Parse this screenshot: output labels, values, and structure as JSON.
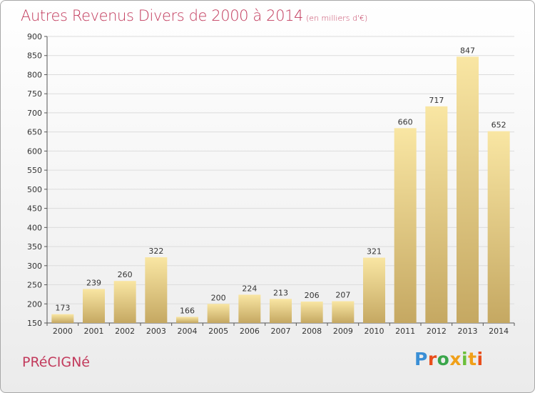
{
  "header": {
    "title": "Autres Revenus Divers de 2000 à 2014",
    "subtitle": "(en milliers d'€)"
  },
  "footer": {
    "commune": "PRéCIGNé",
    "logo": "Proxiti"
  },
  "colors": {
    "title": "#c23a5c",
    "bar_light": "#f9e6a3",
    "bar_dark": "#c5a862"
  },
  "chart_data": {
    "type": "bar",
    "title": "Autres Revenus Divers de 2000 à 2014",
    "subtitle": "(en milliers d'€)",
    "xlabel": "",
    "ylabel": "",
    "categories": [
      "2000",
      "2001",
      "2002",
      "2003",
      "2004",
      "2005",
      "2006",
      "2007",
      "2008",
      "2009",
      "2010",
      "2011",
      "2012",
      "2013",
      "2014"
    ],
    "values": [
      173,
      239,
      260,
      322,
      166,
      200,
      224,
      213,
      206,
      207,
      321,
      660,
      717,
      847,
      652
    ],
    "ylim": [
      150,
      900
    ],
    "yticks": [
      150,
      200,
      250,
      300,
      350,
      400,
      450,
      500,
      550,
      600,
      650,
      700,
      750,
      800,
      850,
      900
    ],
    "grid": true,
    "legend": "none"
  }
}
